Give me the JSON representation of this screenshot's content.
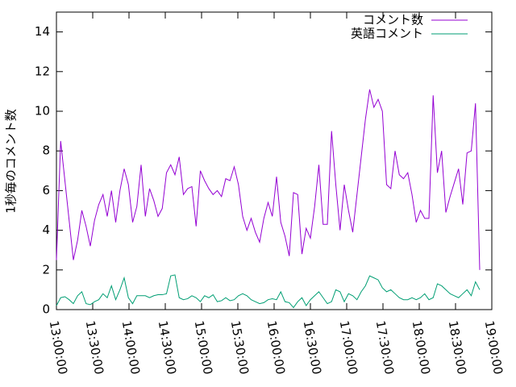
{
  "chart_data": {
    "type": "line",
    "ylabel": "1秒毎のコメント数",
    "x": [
      "13:00:00",
      "13:03:30",
      "13:07:00",
      "13:10:30",
      "13:14:00",
      "13:17:30",
      "13:21:00",
      "13:24:30",
      "13:28:00",
      "13:31:30",
      "13:35:00",
      "13:38:30",
      "13:42:00",
      "13:45:30",
      "13:49:00",
      "13:52:30",
      "13:56:00",
      "13:59:30",
      "14:03:00",
      "14:06:30",
      "14:10:00",
      "14:13:30",
      "14:17:00",
      "14:20:30",
      "14:24:00",
      "14:27:30",
      "14:31:00",
      "14:34:30",
      "14:38:00",
      "14:41:30",
      "14:45:00",
      "14:48:30",
      "14:52:00",
      "14:55:30",
      "14:59:00",
      "15:02:30",
      "15:06:00",
      "15:09:30",
      "15:13:00",
      "15:16:30",
      "15:20:00",
      "15:23:30",
      "15:27:00",
      "15:30:30",
      "15:34:00",
      "15:37:30",
      "15:41:00",
      "15:44:30",
      "15:48:00",
      "15:51:30",
      "15:55:00",
      "15:58:30",
      "16:02:00",
      "16:05:30",
      "16:09:00",
      "16:12:30",
      "16:16:00",
      "16:19:30",
      "16:23:00",
      "16:26:30",
      "16:30:00",
      "16:33:30",
      "16:37:00",
      "16:40:30",
      "16:44:00",
      "16:47:30",
      "16:51:00",
      "16:54:30",
      "16:58:00",
      "17:01:30",
      "17:05:00",
      "17:08:30",
      "17:12:00",
      "17:15:30",
      "17:19:00",
      "17:22:30",
      "17:26:00",
      "17:29:30",
      "17:33:00",
      "17:36:30",
      "17:40:00",
      "17:43:30",
      "17:47:00",
      "17:50:30",
      "17:54:00",
      "17:57:30",
      "18:01:00",
      "18:04:30",
      "18:08:00",
      "18:11:30",
      "18:15:00",
      "18:18:30",
      "18:22:00",
      "18:25:30",
      "18:29:00",
      "18:32:30",
      "18:36:00",
      "18:39:30",
      "18:43:00",
      "18:46:30",
      "18:50:00"
    ],
    "series": [
      {
        "name": "コメント数",
        "color": "#9400d3",
        "values": [
          2.5,
          8.5,
          6.5,
          4.5,
          2.5,
          3.5,
          5.0,
          4.2,
          3.2,
          4.5,
          5.3,
          5.8,
          4.7,
          6.0,
          4.4,
          6.0,
          7.1,
          6.3,
          4.4,
          5.2,
          7.3,
          4.7,
          6.1,
          5.5,
          4.7,
          5.1,
          6.9,
          7.3,
          6.8,
          7.7,
          5.8,
          6.1,
          6.2,
          4.2,
          7.0,
          6.5,
          6.1,
          5.8,
          6.0,
          5.7,
          6.6,
          6.5,
          7.2,
          6.3,
          4.7,
          4.0,
          4.6,
          3.9,
          3.4,
          4.6,
          5.4,
          4.7,
          6.7,
          4.4,
          3.7,
          2.7,
          5.9,
          5.8,
          2.8,
          4.1,
          3.6,
          5.2,
          7.3,
          4.3,
          4.3,
          9.0,
          6.3,
          4.0,
          6.3,
          5.0,
          3.9,
          5.8,
          7.7,
          9.6,
          11.1,
          10.2,
          10.6,
          10.0,
          6.3,
          6.1,
          8.0,
          6.8,
          6.6,
          6.9,
          5.8,
          4.4,
          5.0,
          4.6,
          4.6,
          10.8,
          6.9,
          8.0,
          4.9,
          5.7,
          6.4,
          7.1,
          5.3,
          7.9,
          8.0,
          10.4,
          2.0
        ]
      },
      {
        "name": "英語コメント",
        "color": "#009e73",
        "values": [
          0.2,
          0.6,
          0.65,
          0.5,
          0.3,
          0.7,
          0.9,
          0.3,
          0.25,
          0.4,
          0.5,
          0.8,
          0.6,
          1.2,
          0.5,
          1.0,
          1.6,
          0.6,
          0.3,
          0.7,
          0.7,
          0.7,
          0.6,
          0.7,
          0.75,
          0.75,
          0.8,
          1.7,
          1.75,
          0.6,
          0.5,
          0.55,
          0.7,
          0.6,
          0.4,
          0.7,
          0.6,
          0.75,
          0.4,
          0.45,
          0.6,
          0.45,
          0.5,
          0.7,
          0.8,
          0.7,
          0.5,
          0.4,
          0.3,
          0.35,
          0.5,
          0.55,
          0.5,
          0.9,
          0.4,
          0.35,
          0.1,
          0.4,
          0.6,
          0.2,
          0.5,
          0.7,
          0.9,
          0.6,
          0.3,
          0.4,
          1.0,
          0.9,
          0.4,
          0.8,
          0.7,
          0.5,
          0.9,
          1.2,
          1.7,
          1.6,
          1.5,
          1.1,
          0.9,
          1.0,
          0.8,
          0.6,
          0.5,
          0.5,
          0.6,
          0.5,
          0.6,
          0.8,
          0.5,
          0.6,
          1.3,
          1.2,
          1.0,
          0.8,
          0.7,
          0.6,
          0.8,
          1.0,
          0.7,
          1.4,
          1.0
        ]
      }
    ],
    "xlim": [
      "13:00:00",
      "19:00:00"
    ],
    "xticks": [
      "13:00:00",
      "13:30:00",
      "14:00:00",
      "14:30:00",
      "15:00:00",
      "15:30:00",
      "16:00:00",
      "16:30:00",
      "17:00:00",
      "17:30:00",
      "18:00:00",
      "18:30:00",
      "19:00:00"
    ],
    "ylim": [
      0,
      15
    ],
    "yticks": [
      0,
      2,
      4,
      6,
      8,
      10,
      12,
      14
    ],
    "legend": "top-right"
  }
}
